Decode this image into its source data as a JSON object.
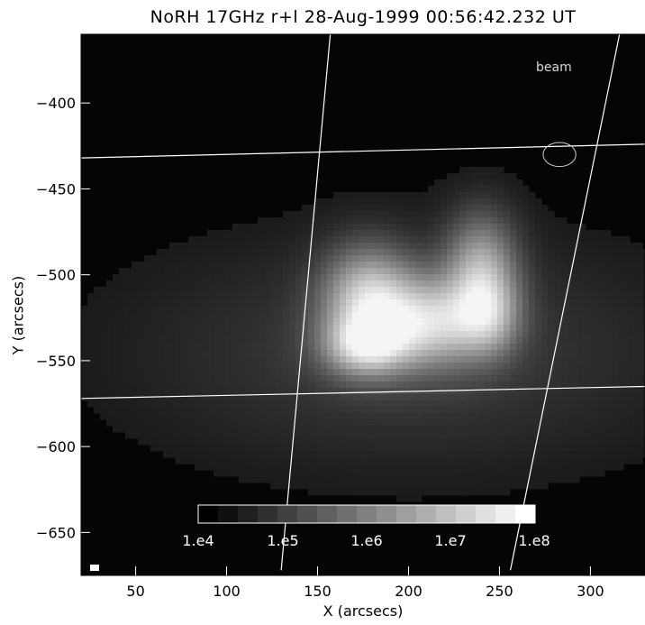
{
  "chart_data": {
    "type": "heatmap",
    "title": "NoRH 17GHz r+l 28-Aug-1999 00:56:42.232 UT",
    "xlabel": "X (arcsecs)",
    "ylabel": "Y (arcsecs)",
    "xlim": [
      20,
      330
    ],
    "ylim": [
      -675,
      -360
    ],
    "x_ticks": [
      50,
      100,
      150,
      200,
      250,
      300
    ],
    "y_ticks": [
      -400,
      -450,
      -500,
      -550,
      -600,
      -650
    ],
    "grid": false,
    "colormap": "grayscale",
    "source_components": [
      {
        "name": "",
        "x": 178,
        "y": -515,
        "sx": 18,
        "sy": 22,
        "amp": 0.72
      },
      {
        "name": "",
        "x": 176,
        "y": -542,
        "sx": 16,
        "sy": 12,
        "amp": 0.55
      },
      {
        "name": "",
        "x": 213,
        "y": -528,
        "sx": 20,
        "sy": 18,
        "amp": 0.62
      },
      {
        "name": "",
        "x": 240,
        "y": -498,
        "sx": 14,
        "sy": 24,
        "amp": 0.6
      },
      {
        "name": "",
        "x": 245,
        "y": -525,
        "sx": 12,
        "sy": 16,
        "amp": 0.35
      },
      {
        "name": "",
        "x": 200,
        "y": -545,
        "sx": 100,
        "sy": 45,
        "amp": 0.18
      }
    ],
    "colorbar": {
      "labels": [
        "1.e4",
        "1.e5",
        "1.e6",
        "1.e7",
        "1.e8"
      ],
      "levels": 17
    },
    "grid_lines": [
      {
        "from": [
          20,
          -432
        ],
        "to": [
          330,
          -424
        ]
      },
      {
        "from": [
          20,
          -572
        ],
        "to": [
          330,
          -565
        ]
      },
      {
        "from": [
          130,
          -672
        ],
        "to": [
          157,
          -360
        ]
      },
      {
        "from": [
          256,
          -672
        ],
        "to": [
          316,
          -360
        ]
      }
    ],
    "beam": {
      "label": "beam",
      "center": [
        283,
        -430
      ],
      "rx": 9,
      "ry": 7
    }
  }
}
